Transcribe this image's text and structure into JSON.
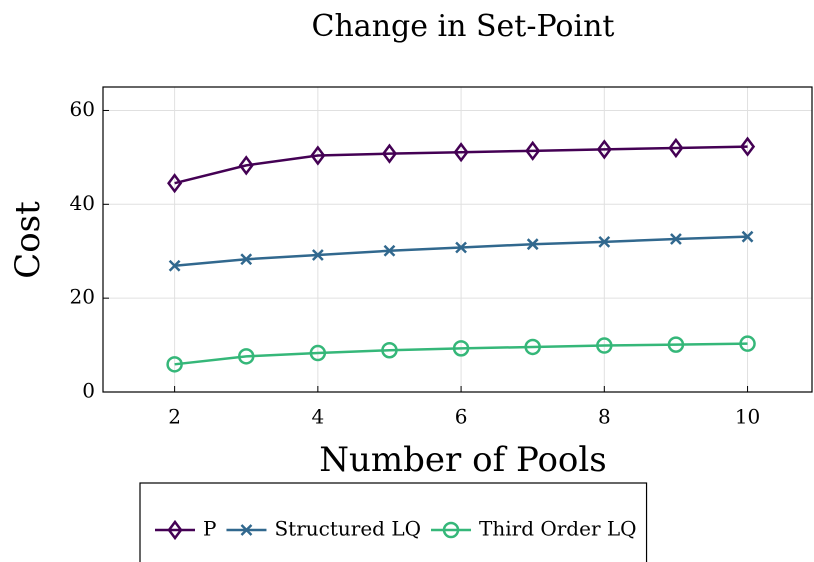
{
  "chart_data": {
    "type": "line",
    "title": "Change in Set-Point",
    "xlabel": "Number of Pools",
    "ylabel": "Cost",
    "x": [
      2,
      3,
      4,
      5,
      6,
      7,
      8,
      9,
      10
    ],
    "series": [
      {
        "name": "P",
        "color": "#440154",
        "marker": "diamond",
        "values": [
          44.5,
          48.3,
          50.4,
          50.8,
          51.1,
          51.4,
          51.7,
          52.0,
          52.3
        ]
      },
      {
        "name": "Structured LQ",
        "color": "#31688e",
        "marker": "cross",
        "values": [
          26.9,
          28.3,
          29.2,
          30.1,
          30.8,
          31.5,
          32.0,
          32.6,
          33.1
        ]
      },
      {
        "name": "Third Order LQ",
        "color": "#35b779",
        "marker": "circle",
        "values": [
          5.9,
          7.6,
          8.3,
          8.9,
          9.3,
          9.6,
          9.9,
          10.1,
          10.3
        ]
      }
    ],
    "xlim": [
      1,
      10.9
    ],
    "xticks": [
      2,
      4,
      6,
      8,
      10
    ],
    "ylim": [
      0,
      65
    ],
    "yticks": [
      0,
      20,
      40,
      60
    ],
    "grid": true,
    "legend": "bottom"
  }
}
